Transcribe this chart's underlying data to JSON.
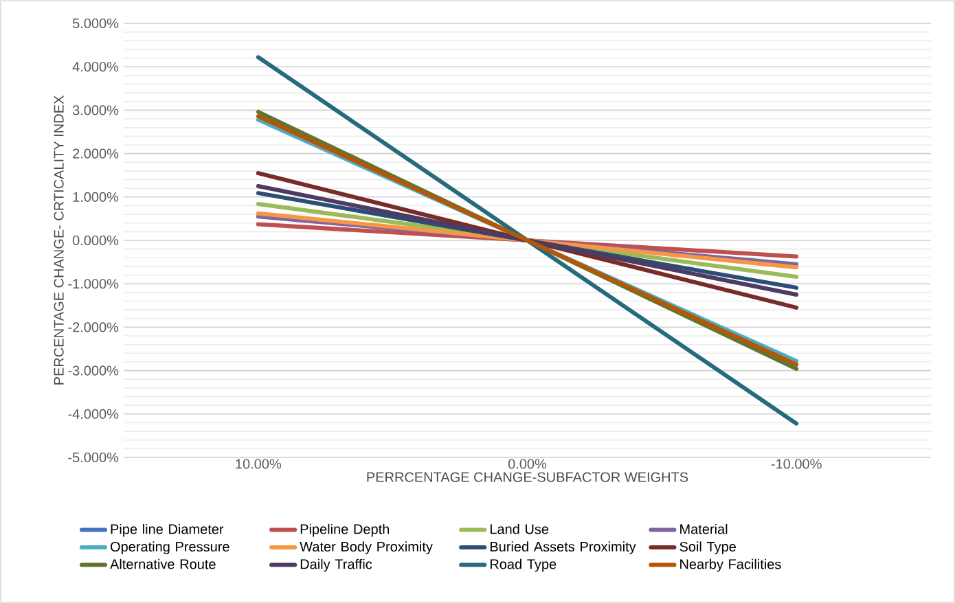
{
  "chart_data": {
    "type": "line",
    "xlabel": "PERRCENTAGE CHANGE-SUBFACTOR WEIGHTS",
    "ylabel": "PERCENTAGE CHANGE- CRTICALITY INDEX",
    "categories": [
      "10.00%",
      "0.00%",
      "-10.00%"
    ],
    "series": [
      {
        "name": "Pipe line Diameter",
        "color": "#4472c4",
        "values": [
          null,
          null,
          null
        ]
      },
      {
        "name": "Pipeline Depth",
        "color": "#c0504d",
        "values": [
          0.37,
          0,
          -0.37
        ]
      },
      {
        "name": "Land Use",
        "color": "#9bbb59",
        "values": [
          0.84,
          0,
          -0.84
        ]
      },
      {
        "name": "Material",
        "color": "#8064a2",
        "values": [
          0.55,
          0,
          -0.55
        ]
      },
      {
        "name": "Operating Pressure",
        "color": "#4bacc6",
        "values": [
          2.78,
          0,
          -2.78
        ]
      },
      {
        "name": "Water Body Proximity",
        "color": "#f79646",
        "values": [
          0.62,
          0,
          -0.62
        ]
      },
      {
        "name": "Buried Assets Proximity",
        "color": "#2c4d75",
        "values": [
          1.09,
          0,
          -1.09
        ]
      },
      {
        "name": "Soil Type",
        "color": "#772c2a",
        "values": [
          1.55,
          0,
          -1.55
        ]
      },
      {
        "name": "Alternative Route",
        "color": "#5f7530",
        "values": [
          2.96,
          0,
          -2.96
        ]
      },
      {
        "name": "Daily Traffic",
        "color": "#4d3b62",
        "values": [
          1.25,
          0,
          -1.25
        ]
      },
      {
        "name": "Road Type",
        "color": "#276a7c",
        "values": [
          4.22,
          0,
          -4.22
        ]
      },
      {
        "name": "Nearby Facilities",
        "color": "#b65708",
        "values": [
          2.86,
          0,
          -2.86
        ]
      }
    ],
    "ylim": [
      -5,
      5
    ],
    "yticks": [
      {
        "value": 5,
        "label": "5.000%"
      },
      {
        "value": 4,
        "label": "4.000%"
      },
      {
        "value": 3,
        "label": "3.000%"
      },
      {
        "value": 2,
        "label": "2.000%"
      },
      {
        "value": 1,
        "label": "1.000%"
      },
      {
        "value": 0,
        "label": "0.000%"
      },
      {
        "value": -1,
        "label": "-1.000%"
      },
      {
        "value": -2,
        "label": "-2.000%"
      },
      {
        "value": -3,
        "label": "-3.000%"
      },
      {
        "value": -4,
        "label": "-4.000%"
      },
      {
        "value": -5,
        "label": "-5.000%"
      }
    ],
    "grid": "y",
    "legend": "bottom",
    "marker": "none",
    "line_style": "solid"
  }
}
